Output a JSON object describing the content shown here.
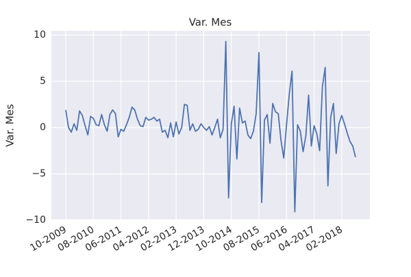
{
  "chart_data": {
    "type": "line",
    "title": "Var. Mes",
    "y_label": "Var. Mes",
    "categories": [
      "10-2009",
      null,
      null,
      null,
      null,
      null,
      null,
      null,
      null,
      null,
      "08-2010",
      null,
      null,
      null,
      null,
      null,
      null,
      null,
      null,
      null,
      "06-2011",
      null,
      null,
      null,
      null,
      null,
      null,
      null,
      null,
      null,
      "04-2012",
      null,
      null,
      null,
      null,
      null,
      null,
      null,
      null,
      null,
      "02-2013",
      null,
      null,
      null,
      null,
      null,
      null,
      null,
      null,
      null,
      "12-2013",
      null,
      null,
      null,
      null,
      null,
      null,
      null,
      null,
      null,
      "10-2014",
      null,
      null,
      null,
      null,
      null,
      null,
      null,
      null,
      null,
      "08-2015",
      null,
      null,
      null,
      null,
      null,
      null,
      null,
      null,
      null,
      "06-2016",
      null,
      null,
      null,
      null,
      null,
      null,
      null,
      null,
      null,
      "04-2017",
      null,
      null,
      null,
      null,
      null,
      null,
      null,
      null,
      null,
      "02-2018",
      null,
      null,
      null,
      null,
      null
    ],
    "series": [
      {
        "name": "Var. Mes",
        "color": "#4c72b0",
        "values": [
          1.9,
          0.0,
          -0.5,
          0.4,
          -0.3,
          1.8,
          1.3,
          0.2,
          -0.8,
          1.2,
          1.0,
          0.3,
          0.2,
          1.4,
          0.3,
          -0.4,
          1.4,
          1.9,
          1.5,
          -1.0,
          -0.2,
          -0.4,
          0.3,
          1.1,
          2.2,
          1.9,
          0.9,
          0.2,
          0.1,
          1.1,
          0.8,
          0.9,
          1.1,
          0.7,
          0.9,
          -0.5,
          -0.3,
          -1.1,
          0.5,
          -1.0,
          0.6,
          -0.7,
          0.0,
          2.5,
          2.4,
          -0.3,
          0.4,
          -0.4,
          -0.2,
          0.4,
          0.0,
          -0.3,
          0.1,
          -0.8,
          0.0,
          0.9,
          -1.1,
          -0.2,
          9.3,
          -7.6,
          0.4,
          2.3,
          -3.4,
          2.1,
          0.5,
          0.7,
          -0.8,
          -1.2,
          -0.4,
          1.5,
          8.1,
          -8.1,
          0.8,
          1.4,
          -1.7,
          2.6,
          1.7,
          1.5,
          -1.4,
          -3.3,
          0.3,
          3.6,
          6.1,
          -9.1,
          0.3,
          -0.4,
          -2.6,
          -0.9,
          3.5,
          -2.0,
          0.2,
          -0.7,
          -2.5,
          4.4,
          6.5,
          -6.3,
          1.1,
          2.6,
          -2.8,
          0.4,
          1.3,
          0.4,
          -0.6,
          -1.5,
          -2.0,
          -3.2
        ]
      }
    ],
    "ylim": [
      -10,
      10
    ],
    "yticks": [
      {
        "value": -10,
        "label": "−10"
      },
      {
        "value": -5,
        "label": "−5"
      },
      0,
      5,
      10
    ],
    "grid": true
  }
}
